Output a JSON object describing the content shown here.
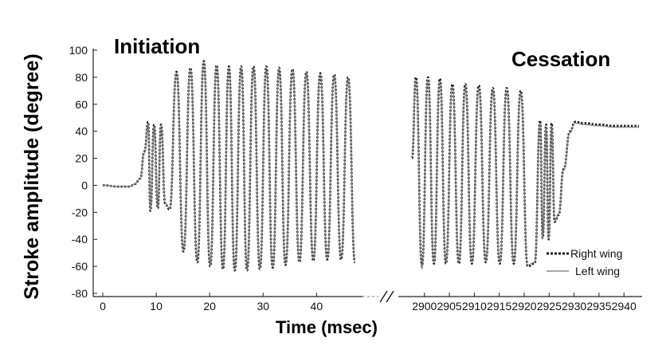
{
  "chart_data": {
    "type": "line",
    "ylabel": "Stroke amplitude (degree)",
    "xlabel": "Time (msec)",
    "ylim": [
      -80,
      100
    ],
    "yticks": [
      "100",
      "80",
      "60",
      "40",
      "20",
      "0",
      "-20",
      "-40",
      "-60",
      "-80"
    ],
    "axis_break": true,
    "legend_position": "bottom-right",
    "panels": [
      {
        "title": "Initiation",
        "xlim": [
          0,
          48
        ],
        "xticks": [
          "0",
          "10",
          "20",
          "30",
          "40"
        ],
        "series": [
          {
            "name": "Right wing",
            "style": "dotted",
            "color": "#1a1a1a",
            "x": [
              0,
              3,
              5,
              6,
              7,
              7.8,
              8.5,
              8.9,
              9.6,
              10.3,
              10.9,
              11.7,
              12.5,
              13.8,
              15.1,
              16.4,
              17.7,
              18.9,
              20.1,
              21.3,
              22.5,
              23.6,
              24.7,
              25.9,
              27,
              28.2,
              29.4,
              30.6,
              31.8,
              33,
              34.2,
              35.5,
              36.8,
              38.1,
              39.4,
              40.7,
              42,
              43.3,
              44.6,
              45.9,
              47.2
            ],
            "y": [
              0,
              -1,
              -1,
              1,
              5,
              25,
              47,
              -19,
              45,
              -17,
              45,
              -14,
              -18,
              84,
              -49,
              87,
              -57,
              92,
              -60,
              89,
              -62,
              88,
              -63,
              88,
              -63,
              88,
              -62,
              88,
              -61,
              87,
              -59,
              86,
              -57,
              84,
              -56,
              83,
              -55,
              82,
              -55,
              80,
              -57
            ]
          },
          {
            "name": "Left wing",
            "style": "solid",
            "color": "#8a8a8a",
            "x": [
              0,
              3,
              5,
              6,
              7,
              7.8,
              8.5,
              8.9,
              9.6,
              10.3,
              10.9,
              11.7,
              12.5,
              13.8,
              15.1,
              16.4,
              17.7,
              18.9,
              20.1,
              21.3,
              22.5,
              23.6,
              24.7,
              25.9,
              27,
              28.2,
              29.4,
              30.6,
              31.8,
              33,
              34.2,
              35.5,
              36.8,
              38.1,
              39.4,
              40.7,
              42,
              43.3,
              44.6,
              45.9,
              47.2
            ],
            "y": [
              0,
              -1,
              -1,
              1,
              5,
              24,
              46,
              -18,
              44,
              -16,
              44,
              -13,
              -17,
              83,
              -48,
              86,
              -56,
              91,
              -59,
              88,
              -61,
              87,
              -62,
              87,
              -62,
              87,
              -61,
              87,
              -60,
              86,
              -58,
              85,
              -56,
              83,
              -55,
              82,
              -54,
              81,
              -54,
              79,
              -56
            ]
          }
        ]
      },
      {
        "title": "Cessation",
        "xlim": [
          2897,
          2943
        ],
        "xticks": [
          "2900",
          "2905",
          "2910",
          "2915",
          "2920",
          "2925",
          "2930",
          "2935",
          "2940"
        ],
        "series": [
          {
            "name": "Right wing",
            "style": "dotted",
            "color": "#1a1a1a",
            "x": [
              2897.5,
              2898.3,
              2899.5,
              2900.7,
              2901.9,
              2903.1,
              2904.3,
              2905.6,
              2906.9,
              2908.2,
              2909.5,
              2910.9,
              2912.3,
              2913.7,
              2915.1,
              2916.5,
              2917.9,
              2919.3,
              2920.7,
              2922.1,
              2923.2,
              2923.7,
              2924.4,
              2924.9,
              2925.5,
              2926.1,
              2926.9,
              2927.9,
              2929.2,
              2930.2,
              2932,
              2935,
              2938,
              2943
            ],
            "y": [
              20,
              80,
              -60,
              80,
              -58,
              79,
              -58,
              75,
              -58,
              75,
              -58,
              74,
              -57,
              72,
              -58,
              72,
              -58,
              70,
              -60,
              -58,
              48,
              -39,
              45,
              -40,
              46,
              -27,
              -22,
              12,
              40,
              47,
              46,
              45,
              44,
              44
            ]
          },
          {
            "name": "Left wing",
            "style": "solid",
            "color": "#8a8a8a",
            "x": [
              2897.5,
              2898.3,
              2899.5,
              2900.7,
              2901.9,
              2903.1,
              2904.3,
              2905.6,
              2906.9,
              2908.2,
              2909.5,
              2910.9,
              2912.3,
              2913.7,
              2915.1,
              2916.5,
              2917.9,
              2919.3,
              2920.7,
              2922.1,
              2923.2,
              2923.7,
              2924.4,
              2924.9,
              2925.5,
              2926.1,
              2926.9,
              2927.9,
              2929.2,
              2930.2,
              2932,
              2935,
              2938,
              2943
            ],
            "y": [
              22,
              78,
              -62,
              78,
              -57,
              77,
              -57,
              73,
              -57,
              73,
              -57,
              72,
              -56,
              70,
              -57,
              70,
              -57,
              68,
              -59,
              -57,
              46,
              -38,
              43,
              -39,
              44,
              -26,
              -21,
              11,
              39,
              46,
              45,
              44,
              43,
              43
            ]
          }
        ]
      }
    ],
    "legend": [
      {
        "label": "Right wing",
        "style": "dotted"
      },
      {
        "label": "Left wing",
        "style": "solid"
      }
    ]
  }
}
